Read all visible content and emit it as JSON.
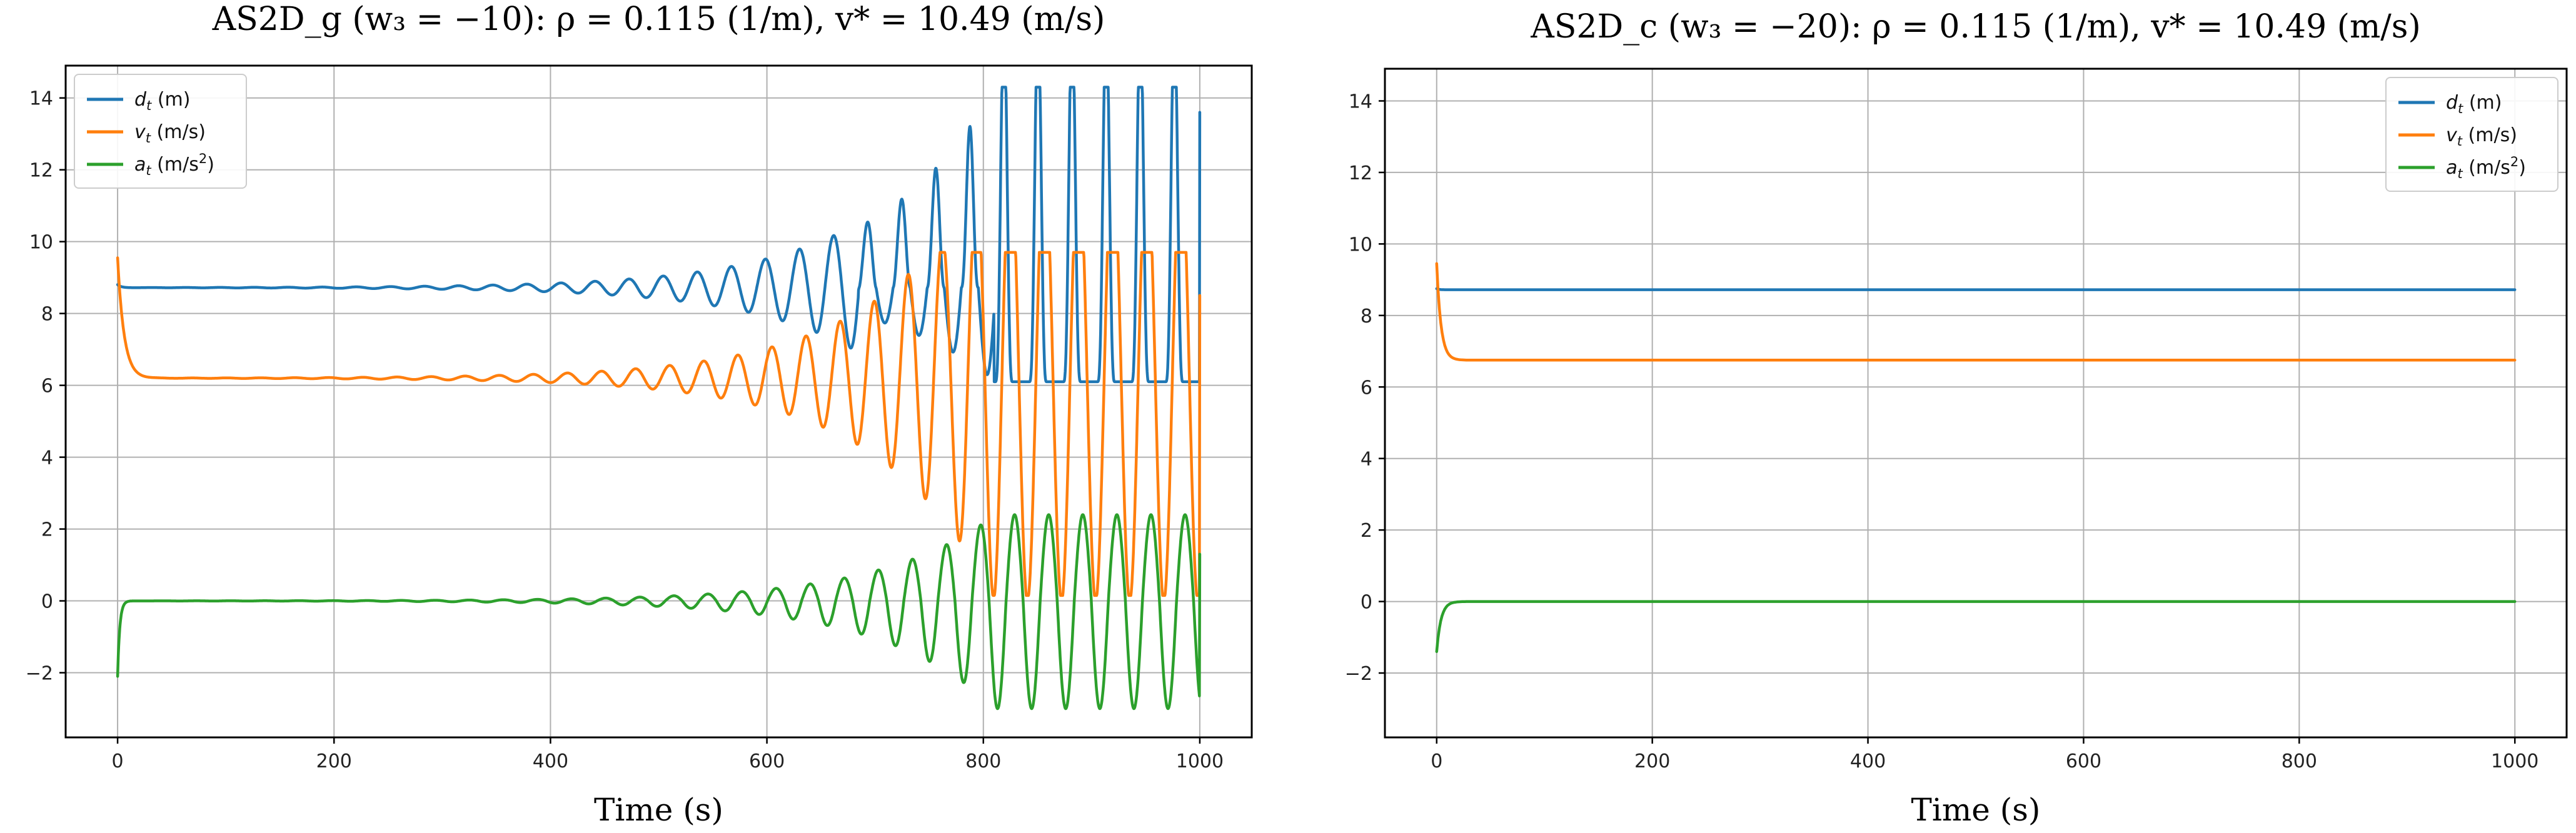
{
  "chart_data": [
    {
      "type": "line",
      "title": "AS2D_g (w₃ = −10): ρ = 0.115 (1/m), v* = 10.49 (m/s)",
      "xlabel": "Time (s)",
      "ylabel": "",
      "xlim": [
        -48,
        1048
      ],
      "ylim": [
        -3.8,
        14.9
      ],
      "xticks": [
        0,
        200,
        400,
        600,
        800,
        1000
      ],
      "yticks": [
        -2,
        0,
        2,
        4,
        6,
        8,
        10,
        12,
        14
      ],
      "grid": true,
      "legend_position": "top-left",
      "series": [
        {
          "name": "d_t (m)",
          "label_main": "d",
          "label_sub": "t",
          "label_unit": " (m)",
          "color": "#1f77b4",
          "behavior": "oscillation growing after ~400 s",
          "initial": 8.8,
          "equilibrium": 8.72,
          "late_max": 14.3,
          "late_min": 6.1,
          "final": 13.6
        },
        {
          "name": "v_t (m/s)",
          "label_main": "v",
          "label_sub": "t",
          "label_unit": " (m/s)",
          "color": "#ff7f0e",
          "behavior": "fast decay then oscillation growing after ~400 s",
          "initial": 9.55,
          "equilibrium": 6.2,
          "late_max": 9.7,
          "late_min": 0.15,
          "final": 8.5
        },
        {
          "name": "a_t (m/s²)",
          "label_main": "a",
          "label_sub": "t",
          "label_unit": " (m/s",
          "label_sup": "2",
          "label_close": ")",
          "color": "#2ca02c",
          "behavior": "spike at start then oscillation growing after ~400 s",
          "initial": -2.1,
          "equilibrium": 0.0,
          "late_max": 2.4,
          "late_min": -3.0,
          "final": 1.3
        }
      ]
    },
    {
      "type": "line",
      "title": "AS2D_c (w₃ = −20): ρ = 0.115 (1/m), v* = 10.49 (m/s)",
      "xlabel": "Time (s)",
      "ylabel": "",
      "xlim": [
        -48,
        1048
      ],
      "ylim": [
        -3.8,
        14.9
      ],
      "xticks": [
        0,
        200,
        400,
        600,
        800,
        1000
      ],
      "yticks": [
        -2,
        0,
        2,
        4,
        6,
        8,
        10,
        12,
        14
      ],
      "grid": true,
      "legend_position": "top-right",
      "series": [
        {
          "name": "d_t (m)",
          "label_main": "d",
          "label_sub": "t",
          "label_unit": " (m)",
          "color": "#1f77b4",
          "behavior": "constant",
          "initial": 8.75,
          "equilibrium": 8.72
        },
        {
          "name": "v_t (m/s)",
          "label_main": "v",
          "label_sub": "t",
          "label_unit": " (m/s)",
          "color": "#ff7f0e",
          "behavior": "fast decay to constant",
          "initial": 9.45,
          "equilibrium": 6.75
        },
        {
          "name": "a_t (m/s²)",
          "label_main": "a",
          "label_sub": "t",
          "label_unit": " (m/s",
          "label_sup": "2",
          "label_close": ")",
          "color": "#2ca02c",
          "behavior": "spike at start then constant",
          "initial": -1.4,
          "equilibrium": 0.0
        }
      ]
    }
  ]
}
